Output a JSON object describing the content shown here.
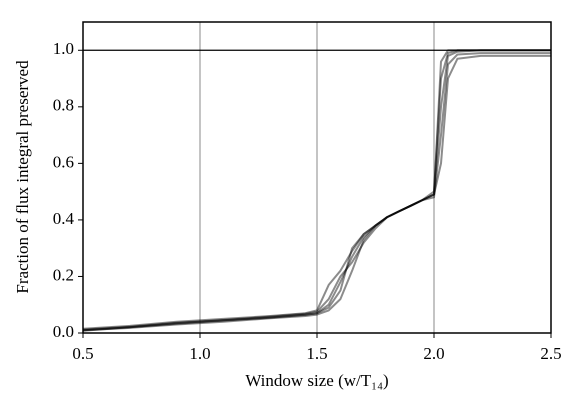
{
  "chart_data": {
    "type": "line",
    "xlabel": "Window size (w/T₁₄)",
    "ylabel": "Fraction of flux integral preserved",
    "xlim": [
      0.5,
      2.5
    ],
    "ylim": [
      0,
      1.1
    ],
    "xticks": [
      0.5,
      {
        "value": 1,
        "label": "1.0"
      },
      1.5,
      {
        "value": 2,
        "label": "2.0"
      },
      2.5
    ],
    "yticks": [
      {
        "value": 0,
        "label": "0.0"
      },
      0.2,
      0.4,
      0.6,
      0.8,
      {
        "value": 1,
        "label": "1.0"
      }
    ],
    "grid": true,
    "grid_color": "#b0b0b0",
    "reference_line": 1,
    "x": [
      0.5,
      0.7,
      0.9,
      1.1,
      1.3,
      1.45,
      1.5,
      1.55,
      1.6,
      1.65,
      1.7,
      1.75,
      1.8,
      1.85,
      1.9,
      1.95,
      2.0,
      2.03,
      2.06,
      2.1,
      2.2,
      2.3,
      2.5
    ],
    "series": [
      {
        "color": "#000000",
        "values": [
          0.01,
          0.02,
          0.035,
          0.045,
          0.055,
          0.065,
          0.07,
          0.1,
          0.18,
          0.27,
          0.34,
          0.38,
          0.41,
          0.43,
          0.45,
          0.47,
          0.49,
          0.8,
          0.98,
          0.995,
          1.0,
          1.0,
          1.0
        ]
      },
      {
        "color": "#000000",
        "values": [
          0.015,
          0.025,
          0.04,
          0.05,
          0.06,
          0.07,
          0.08,
          0.17,
          0.22,
          0.29,
          0.35,
          0.38,
          0.41,
          0.43,
          0.45,
          0.47,
          0.5,
          0.9,
          0.99,
          1.0,
          1.0,
          1.0,
          1.0
        ]
      },
      {
        "color": "#000000",
        "values": [
          0.01,
          0.018,
          0.03,
          0.04,
          0.052,
          0.06,
          0.065,
          0.08,
          0.12,
          0.22,
          0.33,
          0.38,
          0.41,
          0.43,
          0.45,
          0.47,
          0.48,
          0.7,
          0.95,
          0.985,
          0.99,
          0.99,
          0.99
        ]
      },
      {
        "color": "#000000",
        "values": [
          0.012,
          0.022,
          0.036,
          0.046,
          0.058,
          0.068,
          0.075,
          0.12,
          0.2,
          0.25,
          0.32,
          0.37,
          0.41,
          0.43,
          0.45,
          0.47,
          0.49,
          0.6,
          0.9,
          0.97,
          0.98,
          0.98,
          0.98
        ]
      },
      {
        "color": "#000000",
        "values": [
          0.008,
          0.02,
          0.033,
          0.044,
          0.054,
          0.064,
          0.07,
          0.09,
          0.15,
          0.3,
          0.35,
          0.38,
          0.41,
          0.43,
          0.45,
          0.47,
          0.49,
          0.96,
          1.0,
          1.0,
          1.0,
          1.0,
          1.0
        ]
      }
    ]
  }
}
